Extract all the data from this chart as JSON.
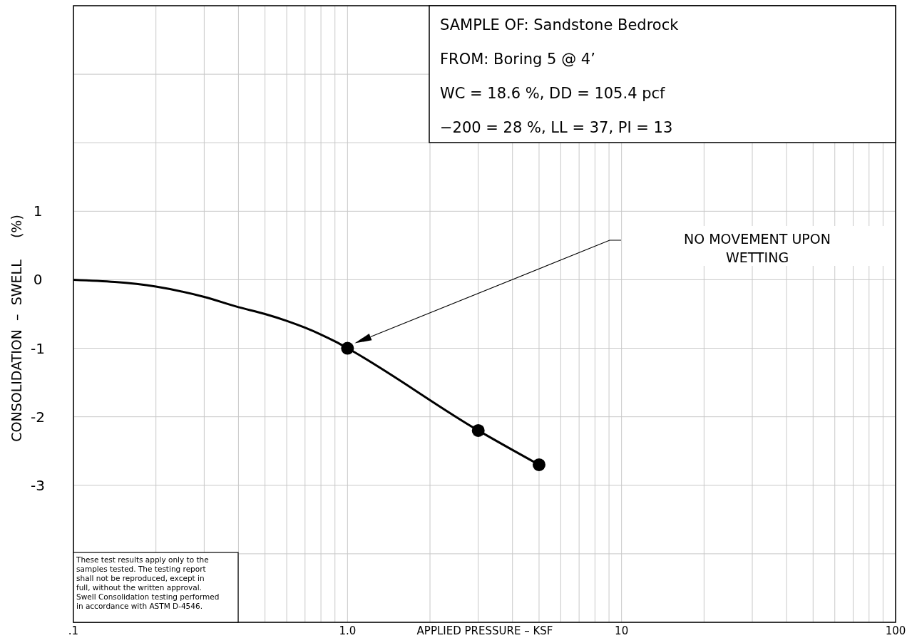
{
  "chart_data": {
    "type": "line",
    "xlabel": "APPLIED PRESSURE – KSF",
    "ylabel": "CONSOLIDATION  –  SWELL     (%)",
    "log": "x",
    "grid": true,
    "marker": "circle",
    "xlim": [
      0.1,
      100
    ],
    "ylim": [
      -5,
      4
    ],
    "xticks": [
      {
        "value": 0.1,
        "label": ".1"
      },
      {
        "value": 0.2,
        "label": null
      },
      {
        "value": 0.3,
        "label": null
      },
      {
        "value": 0.4,
        "label": null
      },
      {
        "value": 0.5,
        "label": null
      },
      {
        "value": 0.6,
        "label": null
      },
      {
        "value": 0.7,
        "label": null
      },
      {
        "value": 0.8,
        "label": null
      },
      {
        "value": 0.9,
        "label": null
      },
      {
        "value": 1,
        "label": "1.0"
      },
      {
        "value": 2,
        "label": null
      },
      {
        "value": 3,
        "label": null
      },
      {
        "value": 4,
        "label": null
      },
      {
        "value": 5,
        "label": null
      },
      {
        "value": 6,
        "label": null
      },
      {
        "value": 7,
        "label": null
      },
      {
        "value": 8,
        "label": null
      },
      {
        "value": 9,
        "label": null
      },
      10,
      {
        "value": 20,
        "label": null
      },
      {
        "value": 30,
        "label": null
      },
      {
        "value": 40,
        "label": null
      },
      {
        "value": 50,
        "label": null
      },
      {
        "value": 60,
        "label": null
      },
      {
        "value": 70,
        "label": null
      },
      {
        "value": 80,
        "label": null
      },
      {
        "value": 90,
        "label": null
      },
      100
    ],
    "yticks": [
      {
        "value": 4,
        "label": null
      },
      {
        "value": 3,
        "label": null
      },
      {
        "value": 2,
        "label": null
      },
      1,
      0,
      -1,
      -2,
      -3,
      {
        "value": -4,
        "label": null
      },
      {
        "value": -5,
        "label": null
      }
    ],
    "series": [
      {
        "color": "#000000",
        "marker": "none",
        "x": [
          0.1,
          0.2,
          0.3,
          0.4,
          0.5,
          0.6,
          0.7,
          0.8,
          0.9,
          1,
          3,
          5
        ],
        "values": [
          0,
          -0.1,
          -0.25,
          -0.4,
          -0.5,
          -0.6,
          -0.7,
          -0.8,
          -0.9,
          -1,
          -2.2,
          -2.7
        ]
      },
      {
        "type": "scatter",
        "color": "#000000",
        "x": [
          1,
          3,
          5
        ],
        "values": [
          -1,
          -2.2,
          -2.7
        ]
      }
    ],
    "annotations": [
      "SAMPLE OF: Sandstone Bedrock",
      "FROM: Boring 5 @ 4’",
      "WC = 18.6 %, DD = 105.4 pcf",
      "−200 = 28 %, LL = 37, PI = 13",
      "NO MOVEMENT UPON WETTING",
      "These test results apply only to the samples tested. The testing report shall not be reproduced, except in full, without the written approval. Swell Consolidation testing performed in accordance with ASTM D-4546."
    ]
  }
}
